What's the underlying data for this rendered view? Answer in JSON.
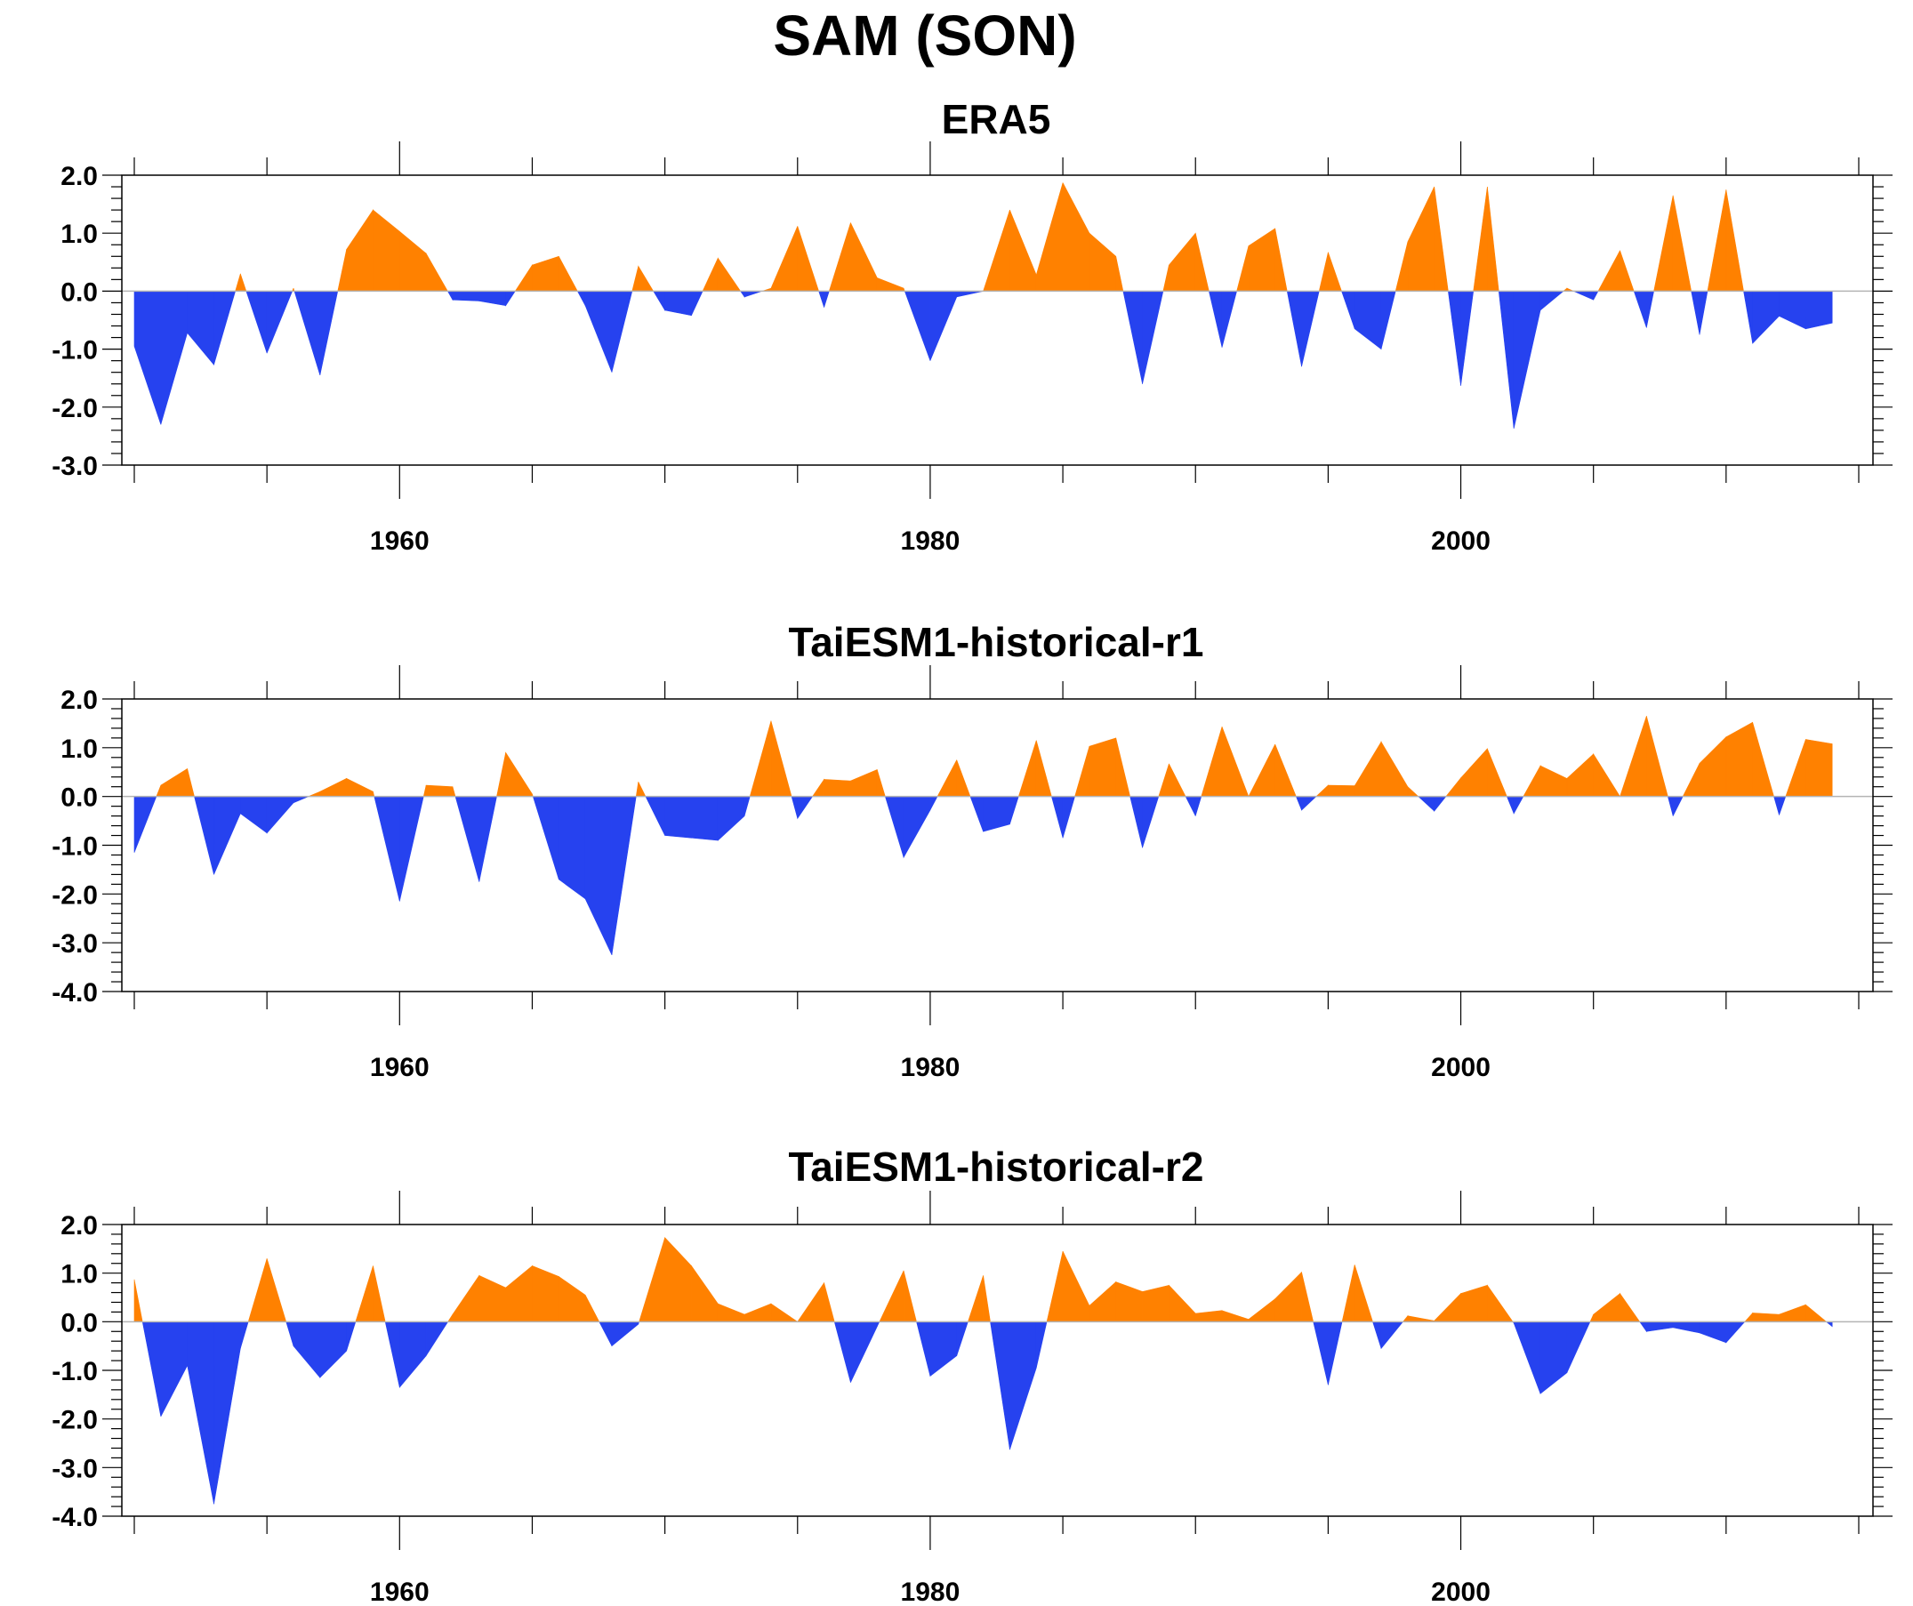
{
  "figure": {
    "title": "SAM (SON)",
    "colors": {
      "positive": "#ff8100",
      "negative": "#2642ef",
      "axis": "#000000",
      "zero_line": "#b4b4b4"
    }
  },
  "chart_data": [
    {
      "type": "area",
      "title": "ERA5",
      "xlabel": "",
      "ylabel": "",
      "xlim": [
        1950,
        2015
      ],
      "ylim": [
        -3.0,
        2.0
      ],
      "xticks": [
        1960,
        1980,
        2000
      ],
      "xtick_labels": [
        "1960",
        "1980",
        "2000"
      ],
      "yticks": [
        2.0,
        1.0,
        0.0,
        -1.0,
        -2.0,
        -3.0
      ],
      "ytick_labels": [
        "2.0",
        "1.0",
        "0.0",
        "-1.0",
        "-2.0",
        "-3.0"
      ],
      "fill_above_zero": "#ff8100",
      "fill_below_zero": "#2642ef",
      "x": [
        1950,
        1951,
        1952,
        1953,
        1954,
        1955,
        1956,
        1957,
        1958,
        1959,
        1960,
        1961,
        1962,
        1963,
        1964,
        1965,
        1966,
        1967,
        1968,
        1969,
        1970,
        1971,
        1972,
        1973,
        1974,
        1975,
        1976,
        1977,
        1978,
        1979,
        1980,
        1981,
        1982,
        1983,
        1984,
        1985,
        1986,
        1987,
        1988,
        1989,
        1990,
        1991,
        1992,
        1993,
        1994,
        1995,
        1996,
        1997,
        1998,
        1999,
        2000,
        2001,
        2002,
        2003,
        2004,
        2005,
        2006,
        2007,
        2008,
        2009,
        2010,
        2011,
        2012,
        2013,
        2014
      ],
      "values": [
        -0.95,
        -2.3,
        -0.72,
        -1.27,
        0.3,
        -1.07,
        0.05,
        -1.45,
        0.72,
        1.4,
        1.03,
        0.65,
        -0.15,
        -0.17,
        -0.25,
        0.45,
        0.6,
        -0.25,
        -1.4,
        0.43,
        -0.33,
        -0.42,
        0.57,
        -0.1,
        0.05,
        1.12,
        -0.28,
        1.18,
        0.23,
        0.05,
        -1.2,
        -0.1,
        0.0,
        1.4,
        0.28,
        1.87,
        1.0,
        0.6,
        -1.6,
        0.45,
        1.0,
        -0.97,
        0.78,
        1.08,
        -1.3,
        0.67,
        -0.65,
        -1.0,
        0.85,
        1.8,
        -1.63,
        1.8,
        -2.37,
        -0.33,
        0.05,
        -0.15,
        0.7,
        -0.63,
        1.65,
        -0.75,
        1.75,
        -0.9,
        -0.43,
        -0.65,
        -0.55
      ],
      "grid": false
    },
    {
      "type": "area",
      "title": "TaiESM1-historical-r1",
      "xlabel": "",
      "ylabel": "",
      "xlim": [
        1950,
        2015
      ],
      "ylim": [
        -4.0,
        2.0
      ],
      "xticks": [
        1960,
        1980,
        2000
      ],
      "xtick_labels": [
        "1960",
        "1980",
        "2000"
      ],
      "yticks": [
        2.0,
        1.0,
        0.0,
        -1.0,
        -2.0,
        -3.0,
        -4.0
      ],
      "ytick_labels": [
        "2.0",
        "1.0",
        "0.0",
        "-1.0",
        "-2.0",
        "-3.0",
        "-4.0"
      ],
      "fill_above_zero": "#ff8100",
      "fill_below_zero": "#2642ef",
      "x": [
        1950,
        1951,
        1952,
        1953,
        1954,
        1955,
        1956,
        1957,
        1958,
        1959,
        1960,
        1961,
        1962,
        1963,
        1964,
        1965,
        1966,
        1967,
        1968,
        1969,
        1970,
        1971,
        1972,
        1973,
        1974,
        1975,
        1976,
        1977,
        1978,
        1979,
        1980,
        1981,
        1982,
        1983,
        1984,
        1985,
        1986,
        1987,
        1988,
        1989,
        1990,
        1991,
        1992,
        1993,
        1994,
        1995,
        1996,
        1997,
        1998,
        1999,
        2000,
        2001,
        2002,
        2003,
        2004,
        2005,
        2006,
        2007,
        2008,
        2009,
        2010,
        2011,
        2012,
        2013,
        2014
      ],
      "values": [
        -1.15,
        0.23,
        0.57,
        -1.6,
        -0.35,
        -0.75,
        -0.13,
        0.1,
        0.37,
        0.1,
        -2.15,
        0.23,
        0.2,
        -1.75,
        0.9,
        0.05,
        -1.7,
        -2.1,
        -3.25,
        0.3,
        -0.8,
        -0.85,
        -0.9,
        -0.4,
        1.55,
        -0.45,
        0.35,
        0.32,
        0.55,
        -1.25,
        -0.28,
        0.75,
        -0.72,
        -0.57,
        1.15,
        -0.85,
        1.03,
        1.2,
        -1.05,
        0.67,
        -0.4,
        1.43,
        0.0,
        1.07,
        -0.28,
        0.23,
        0.22,
        1.12,
        0.2,
        -0.3,
        0.38,
        0.98,
        -0.35,
        0.63,
        0.37,
        0.87,
        0.0,
        1.65,
        -0.4,
        0.68,
        1.22,
        1.52,
        -0.38,
        1.17,
        1.08
      ],
      "grid": false
    },
    {
      "type": "area",
      "title": "TaiESM1-historical-r2",
      "xlabel": "",
      "ylabel": "",
      "xlim": [
        1950,
        2015
      ],
      "ylim": [
        -4.0,
        2.0
      ],
      "xticks": [
        1960,
        1980,
        2000
      ],
      "xtick_labels": [
        "1960",
        "1980",
        "2000"
      ],
      "yticks": [
        2.0,
        1.0,
        0.0,
        -1.0,
        -2.0,
        -3.0,
        -4.0
      ],
      "ytick_labels": [
        "2.0",
        "1.0",
        "0.0",
        "-1.0",
        "-2.0",
        "-3.0",
        "-4.0"
      ],
      "fill_above_zero": "#ff8100",
      "fill_below_zero": "#2642ef",
      "x": [
        1950,
        1951,
        1952,
        1953,
        1954,
        1955,
        1956,
        1957,
        1958,
        1959,
        1960,
        1961,
        1962,
        1963,
        1964,
        1965,
        1966,
        1967,
        1968,
        1969,
        1970,
        1971,
        1972,
        1973,
        1974,
        1975,
        1976,
        1977,
        1978,
        1979,
        1980,
        1981,
        1982,
        1983,
        1984,
        1985,
        1986,
        1987,
        1988,
        1989,
        1990,
        1991,
        1992,
        1993,
        1994,
        1995,
        1996,
        1997,
        1998,
        1999,
        2000,
        2001,
        2002,
        2003,
        2004,
        2005,
        2006,
        2007,
        2008,
        2009,
        2010,
        2011,
        2012,
        2013,
        2014
      ],
      "values": [
        0.87,
        -1.95,
        -0.9,
        -3.75,
        -0.55,
        1.3,
        -0.5,
        -1.15,
        -0.6,
        1.15,
        -1.35,
        -0.7,
        0.15,
        0.95,
        0.7,
        1.15,
        0.93,
        0.55,
        -0.5,
        -0.05,
        1.73,
        1.15,
        0.37,
        0.15,
        0.37,
        0.0,
        0.8,
        -1.25,
        -0.1,
        1.05,
        -1.12,
        -0.7,
        0.95,
        -2.63,
        -0.95,
        1.45,
        0.33,
        0.82,
        0.62,
        0.75,
        0.17,
        0.23,
        0.05,
        0.47,
        1.02,
        -1.3,
        1.17,
        -0.55,
        0.12,
        0.02,
        0.58,
        0.75,
        -0.03,
        -1.48,
        -1.05,
        0.15,
        0.58,
        -0.2,
        -0.12,
        -0.23,
        -0.43,
        0.18,
        0.15,
        0.35,
        -0.1
      ],
      "grid": false
    }
  ]
}
